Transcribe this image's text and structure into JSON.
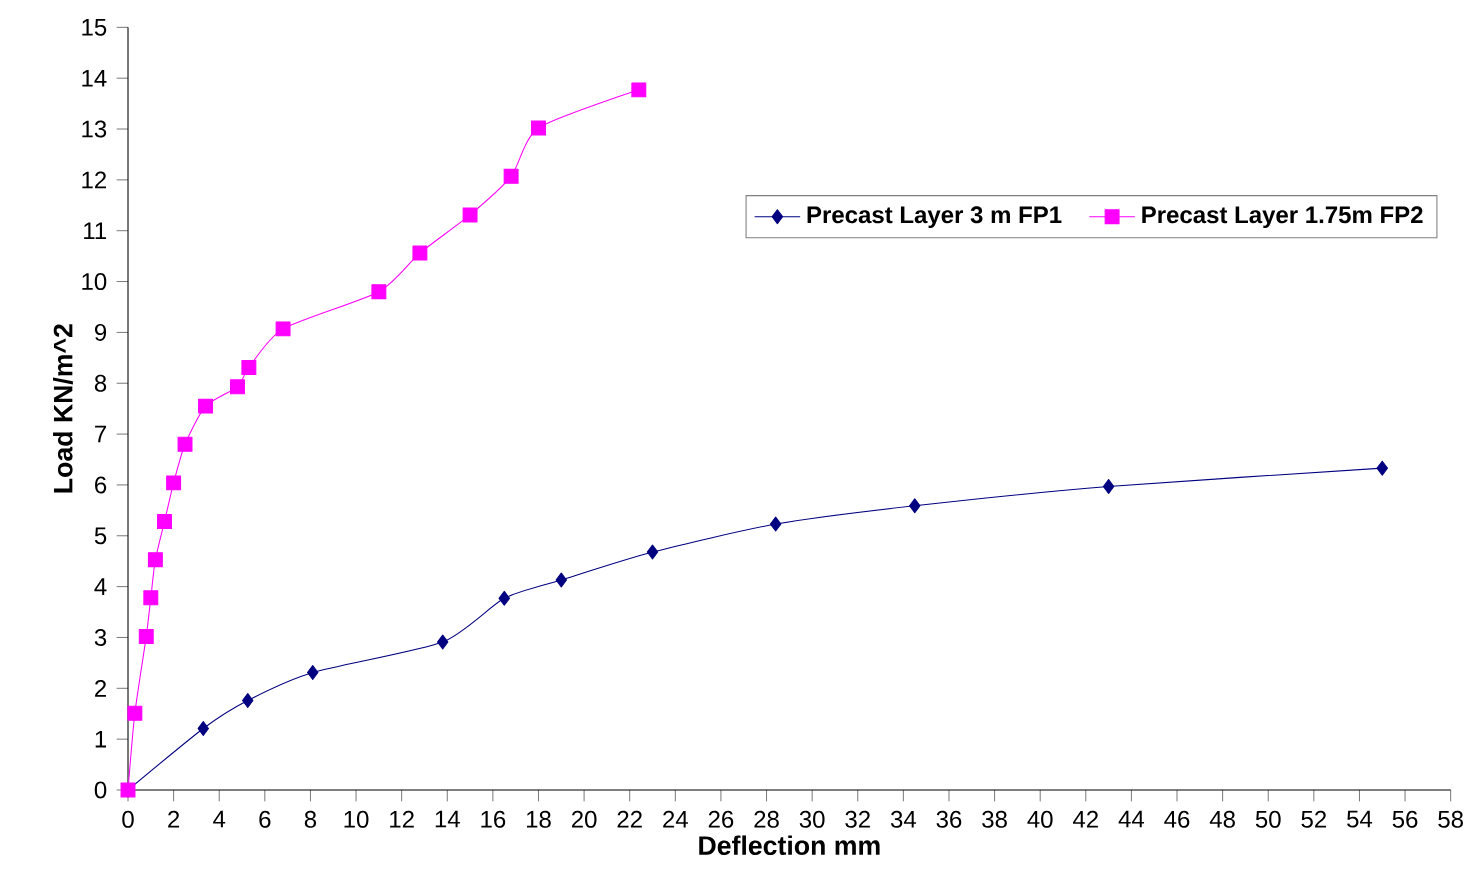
{
  "chart_data": {
    "type": "line",
    "xlabel": "Deflection mm",
    "ylabel": "Load KN/m^2",
    "xlim": [
      0,
      58
    ],
    "xticks": [
      0,
      2,
      4,
      6,
      8,
      10,
      12,
      14,
      16,
      18,
      20,
      22,
      24,
      26,
      28,
      30,
      32,
      34,
      36,
      38,
      40,
      42,
      44,
      46,
      48,
      50,
      52,
      54,
      56,
      58
    ],
    "ylim": [
      0,
      15
    ],
    "yticks": [
      0,
      1,
      2,
      3,
      4,
      5,
      6,
      7,
      8,
      9,
      10,
      11,
      12,
      13,
      14,
      15
    ],
    "legend": "top right",
    "line_style": "solid",
    "grid": false,
    "series": [
      {
        "name": "Precast Layer 3 m FP1",
        "color": "#000080",
        "marker": "diamond",
        "x": [
          0,
          3.3,
          5.25,
          8.1,
          13.8,
          16.5,
          19.0,
          23.0,
          28.4,
          34.5,
          43.0,
          55.0
        ],
        "values": [
          0,
          1.21,
          1.76,
          2.31,
          2.91,
          3.77,
          4.13,
          4.68,
          5.23,
          5.59,
          5.97,
          6.33
        ]
      },
      {
        "name": "Precast Layer 1.75m FP2",
        "color": "#ff00ff",
        "marker": "square",
        "x": [
          0,
          0.3,
          0.8,
          1.0,
          1.2,
          1.6,
          2.0,
          2.5,
          3.4,
          4.8,
          5.3,
          6.8,
          11.0,
          12.8,
          15.0,
          16.8,
          18.0,
          22.4
        ],
        "values": [
          0,
          1.51,
          3.02,
          3.78,
          4.53,
          5.28,
          6.04,
          6.8,
          7.55,
          7.93,
          8.31,
          9.07,
          9.8,
          10.56,
          11.31,
          12.07,
          13.02,
          13.77
        ]
      }
    ]
  }
}
